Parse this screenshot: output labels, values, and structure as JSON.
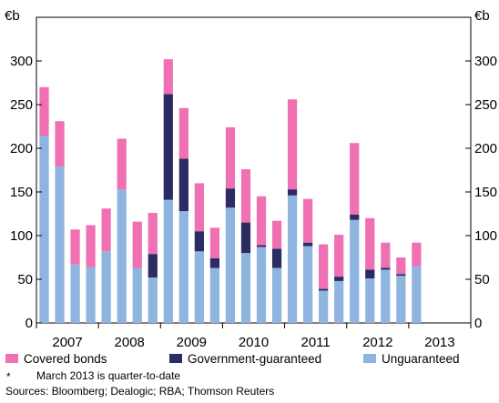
{
  "chart_data": {
    "type": "bar",
    "stacked": true,
    "left_unit": "€b",
    "right_unit": "€b",
    "ylim": [
      0,
      350
    ],
    "yticks": [
      0,
      50,
      100,
      150,
      200,
      250,
      300
    ],
    "grid": false,
    "legend_position": "bottom",
    "years": [
      "2007",
      "2008",
      "2009",
      "2010",
      "2011",
      "2012",
      "2013"
    ],
    "bars_per_year": 4,
    "series": [
      {
        "name": "Unguaranteed",
        "color": "#8fb4e0",
        "values": [
          214,
          179,
          67,
          64,
          82,
          153,
          63,
          52,
          141,
          128,
          82,
          63,
          132,
          80,
          87,
          63,
          146,
          88,
          37,
          48,
          118,
          51,
          61,
          54,
          65
        ]
      },
      {
        "name": "Government-guaranteed",
        "color": "#2a2c63",
        "values": [
          0,
          0,
          0,
          0,
          0,
          0,
          0,
          27,
          121,
          60,
          23,
          11,
          22,
          35,
          2,
          22,
          7,
          4,
          2,
          5,
          6,
          10,
          2,
          2,
          0
        ]
      },
      {
        "name": "Covered bonds",
        "color": "#ef70b3",
        "values": [
          56,
          52,
          40,
          48,
          49,
          58,
          53,
          47,
          40,
          58,
          55,
          35,
          70,
          61,
          56,
          32,
          103,
          50,
          51,
          48,
          82,
          59,
          29,
          19,
          27
        ]
      }
    ],
    "legend": [
      {
        "name": "Covered bonds",
        "color": "#ef70b3"
      },
      {
        "name": "Government-guaranteed",
        "color": "#2a2c63"
      },
      {
        "name": "Unguaranteed",
        "color": "#8fb4e0"
      }
    ],
    "footnote_marker": "*",
    "footnote": "March 2013 is quarter-to-date",
    "sources": "Sources: Bloomberg; Dealogic; RBA; Thomson Reuters"
  }
}
